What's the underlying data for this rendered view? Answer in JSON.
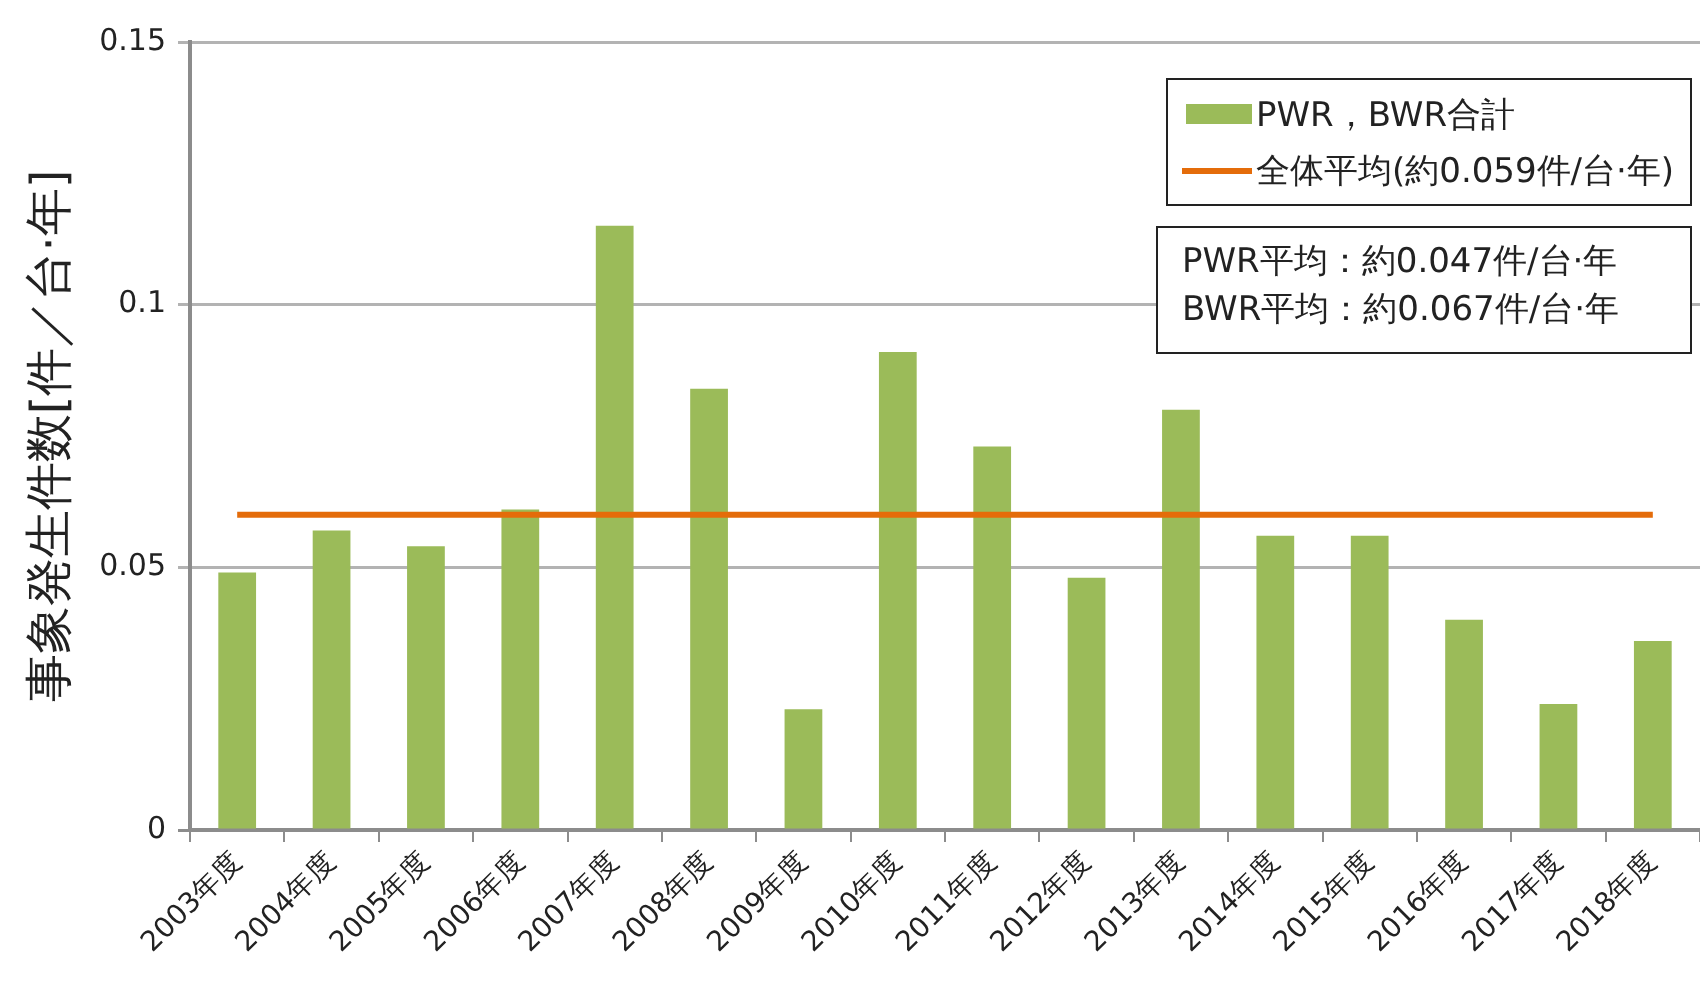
{
  "chart_data": {
    "type": "bar",
    "ylabel": "事象発生件数[件／台·年]",
    "categories": [
      "2003年度",
      "2004年度",
      "2005年度",
      "2006年度",
      "2007年度",
      "2008年度",
      "2009年度",
      "2010年度",
      "2011年度",
      "2012年度",
      "2013年度",
      "2014年度",
      "2015年度",
      "2016年度",
      "2017年度",
      "2018年度"
    ],
    "series": [
      {
        "name": "PWR，BWR合計",
        "color": "#9bbb59",
        "values": [
          0.049,
          0.057,
          0.054,
          0.061,
          0.115,
          0.084,
          0.023,
          0.091,
          0.073,
          0.048,
          0.08,
          0.056,
          0.056,
          0.04,
          0.024,
          0.036
        ]
      },
      {
        "name": "全体平均(約0.059件/台·年)",
        "type": "line",
        "color": "#e46c0a",
        "values": [
          0.06,
          0.06,
          0.06,
          0.06,
          0.06,
          0.06,
          0.06,
          0.06,
          0.06,
          0.06,
          0.06,
          0.06,
          0.06,
          0.06,
          0.06,
          0.06
        ]
      }
    ],
    "ylim": [
      0,
      0.15
    ],
    "yticks": [
      0,
      0.05,
      0.1,
      0.15
    ],
    "annotations": [
      "PWR平均：約0.047件/台·年",
      "BWR平均：約0.067件/台·年"
    ],
    "grid": "y",
    "legend": "top right",
    "marker": "none"
  }
}
